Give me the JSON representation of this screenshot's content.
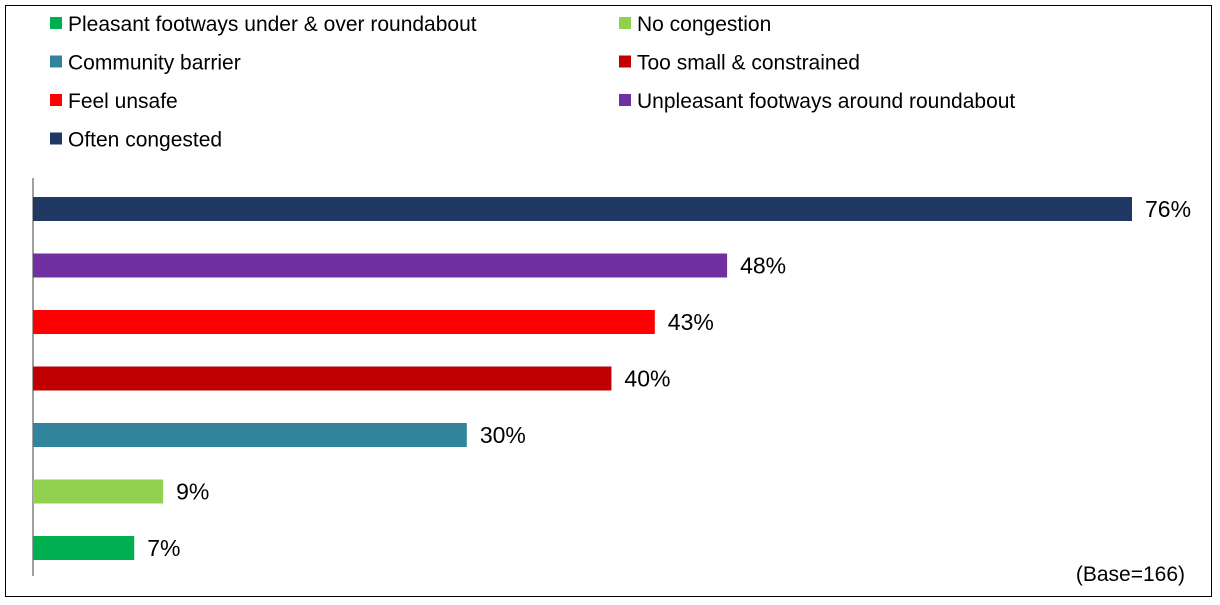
{
  "chart_data": {
    "type": "bar",
    "orientation": "horizontal",
    "categories": [
      "Often congested",
      "Unpleasant footways around roundabout",
      "Feel unsafe",
      "Too small & constrained",
      "Community barrier",
      "No congestion",
      "Pleasant footways under & over roundabout"
    ],
    "values": [
      76,
      48,
      43,
      40,
      30,
      9,
      7
    ],
    "value_labels": [
      "76%",
      "48%",
      "43%",
      "40%",
      "30%",
      "9%",
      "7%"
    ],
    "colors": [
      "#1f3864",
      "#7030a0",
      "#ff0000",
      "#c00000",
      "#31849b",
      "#92d050",
      "#00b050"
    ],
    "unit": "%",
    "xlim": [
      0,
      76
    ],
    "grid": false,
    "legend_position": "top",
    "legend": [
      {
        "label": "Pleasant footways under & over roundabout",
        "color": "#00b050"
      },
      {
        "label": "No congestion",
        "color": "#92d050"
      },
      {
        "label": "Community barrier",
        "color": "#31849b"
      },
      {
        "label": "Too small & constrained",
        "color": "#c00000"
      },
      {
        "label": "Feel unsafe",
        "color": "#ff0000"
      },
      {
        "label": "Unpleasant footways around roundabout",
        "color": "#7030a0"
      },
      {
        "label": "Often congested",
        "color": "#1f3864"
      }
    ],
    "annotation": "(Base=166)"
  }
}
